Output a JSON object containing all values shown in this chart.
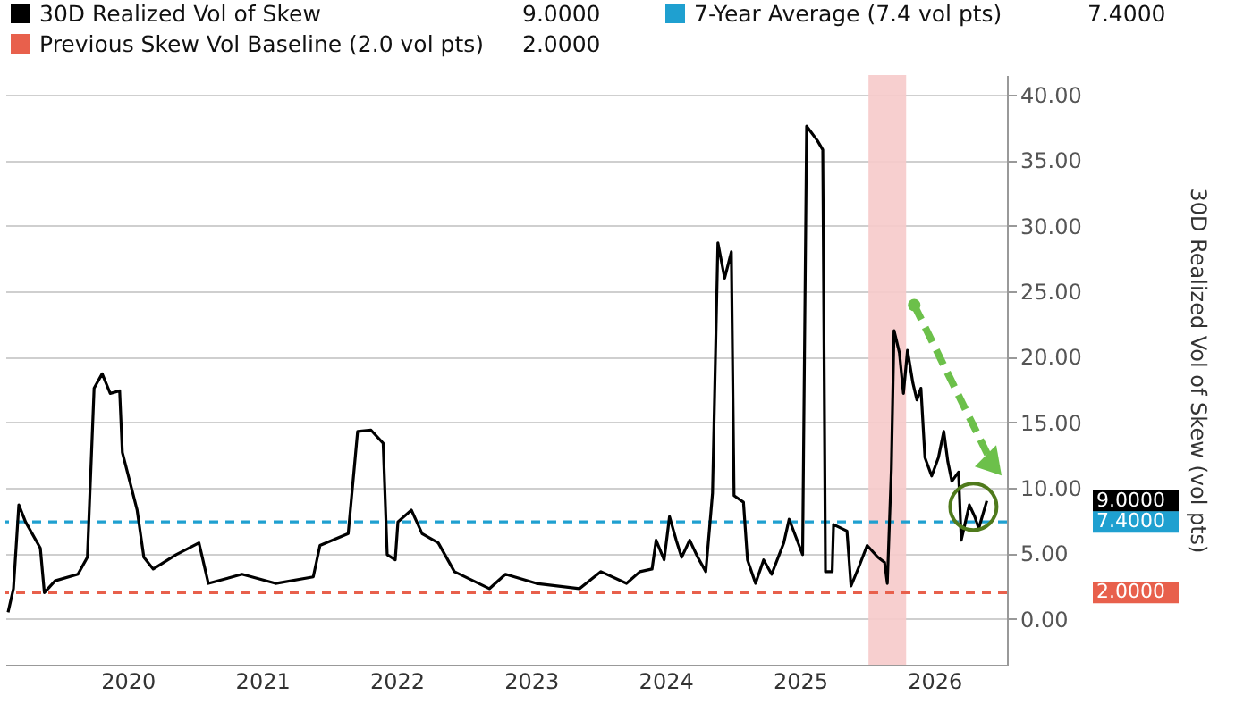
{
  "chart_data": {
    "type": "line",
    "ylabel": "30D Realized Vol of Skew (vol pts)",
    "xlim": [
      2019.59,
      2027.04
    ],
    "ylim": [
      -3.5,
      41.5
    ],
    "xticks": [
      {
        "value": 2020.5,
        "label": "2020"
      },
      {
        "value": 2021.5,
        "label": "2021"
      },
      {
        "value": 2022.5,
        "label": "2022"
      },
      {
        "value": 2023.5,
        "label": "2023"
      },
      {
        "value": 2024.5,
        "label": "2024"
      },
      {
        "value": 2025.5,
        "label": "2025"
      },
      {
        "value": 2026.5,
        "label": "2026"
      }
    ],
    "yticks": [
      {
        "value": 0,
        "label": "0.00"
      },
      {
        "value": 5,
        "label": "5.00"
      },
      {
        "value": 10,
        "label": "10.00"
      },
      {
        "value": 15,
        "label": "15.00"
      },
      {
        "value": 20,
        "label": "20.00"
      },
      {
        "value": 25,
        "label": "25.00"
      },
      {
        "value": 30,
        "label": "30.00"
      },
      {
        "value": 35,
        "label": "35.00"
      },
      {
        "value": 40,
        "label": "40.00"
      }
    ],
    "grid": "y",
    "legend": "top left",
    "line_style": "solid",
    "series": [
      {
        "name": "30D Realized Vol of Skew",
        "color": "#000000",
        "x": [
          2019.61,
          2019.65,
          2019.69,
          2019.74,
          2019.85,
          2019.88,
          2019.96,
          2020.13,
          2020.2,
          2020.25,
          2020.31,
          2020.37,
          2020.44,
          2020.46,
          2020.57,
          2020.62,
          2020.69,
          2020.86,
          2021.03,
          2021.1,
          2021.35,
          2021.6,
          2021.88,
          2021.93,
          2022.14,
          2022.21,
          2022.31,
          2022.4,
          2022.43,
          2022.49,
          2022.51,
          2022.61,
          2022.69,
          2022.81,
          2022.93,
          2023.19,
          2023.31,
          2023.54,
          2023.86,
          2024.02,
          2024.21,
          2024.31,
          2024.4,
          2024.43,
          2024.49,
          2024.53,
          2024.58,
          2024.62,
          2024.68,
          2024.74,
          2024.8,
          2024.85,
          2024.89,
          2024.94,
          2024.99,
          2025.01,
          2025.08,
          2025.11,
          2025.17,
          2025.23,
          2025.29,
          2025.38,
          2025.42,
          2025.52,
          2025.55,
          2025.63,
          2025.67,
          2025.69,
          2025.74,
          2025.75,
          2025.85,
          2025.88,
          2025.94,
          2026.0,
          2026.08,
          2026.13,
          2026.15,
          2026.18,
          2026.2,
          2026.24,
          2026.27,
          2026.3,
          2026.34,
          2026.37,
          2026.4,
          2026.43,
          2026.48,
          2026.53,
          2026.57,
          2026.6,
          2026.63,
          2026.68,
          2026.7,
          2026.76,
          2026.8,
          2026.83,
          2026.89
        ],
        "values": [
          0.5,
          2.3,
          8.7,
          7.4,
          5.4,
          2.0,
          2.9,
          3.4,
          4.7,
          17.6,
          18.7,
          17.2,
          17.4,
          12.7,
          8.3,
          4.7,
          3.8,
          4.9,
          5.8,
          2.7,
          3.4,
          2.7,
          3.2,
          5.6,
          6.5,
          14.3,
          14.4,
          13.4,
          4.9,
          4.5,
          7.4,
          8.3,
          6.5,
          5.8,
          3.6,
          2.3,
          3.4,
          2.7,
          2.3,
          3.6,
          2.7,
          3.6,
          3.8,
          6.0,
          4.5,
          7.8,
          6.0,
          4.7,
          6.0,
          4.7,
          3.6,
          9.6,
          28.7,
          26.0,
          28.0,
          9.4,
          8.9,
          4.5,
          2.7,
          4.5,
          3.4,
          5.8,
          7.6,
          4.9,
          37.6,
          36.5,
          35.8,
          3.6,
          3.6,
          7.2,
          6.7,
          2.5,
          4.0,
          5.6,
          4.7,
          4.3,
          2.7,
          11.4,
          22.0,
          20.3,
          17.2,
          20.5,
          18.0,
          16.7,
          17.6,
          12.3,
          10.9,
          12.3,
          14.3,
          12.0,
          10.5,
          11.2,
          6.0,
          8.7,
          7.8,
          6.9,
          9.0
        ]
      }
    ],
    "ref_lines": [
      {
        "axis": "y",
        "value": 7.4,
        "label": "7-Year Average (7.4 vol pts)",
        "color": "#1fa0d0",
        "line_style": "dashed"
      },
      {
        "axis": "y",
        "value": 2.0,
        "label": "Previous Skew Vol Baseline (2.0 vol pts)",
        "color": "#e8604c",
        "line_style": "dashed"
      }
    ],
    "bands": [
      {
        "axis": "x",
        "from": 2026.01,
        "to": 2026.29,
        "color": "#f6caca"
      }
    ],
    "annotations": [
      "9.0000",
      "7.4000",
      "2.0000"
    ]
  }
}
